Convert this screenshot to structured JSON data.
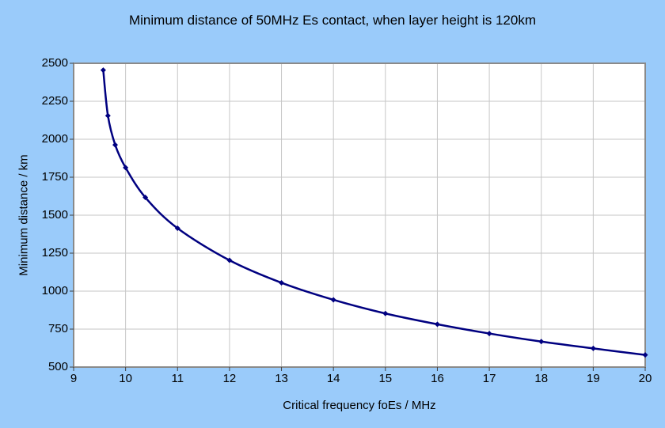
{
  "page": {
    "background_color": "#9ACBFA"
  },
  "chart_data": {
    "type": "line",
    "title": "Minimum distance of 50MHz Es contact, when layer height is 120km",
    "xlabel": "Critical frequency foEs / MHz",
    "ylabel": "Minimum distance / km",
    "series": [
      {
        "name": "minimum-distance-curve",
        "x": [
          9.57,
          9.66,
          9.8,
          10,
          10.38,
          11,
          12,
          13,
          14,
          15,
          16,
          17,
          18,
          19,
          20
        ],
        "y": [
          2455,
          2155,
          1963,
          1813,
          1617,
          1414,
          1203,
          1055,
          943,
          853,
          782,
          721,
          668,
          623,
          580
        ]
      }
    ],
    "xlim": [
      9,
      20
    ],
    "ylim": [
      500,
      2500
    ],
    "xticks": [
      9,
      10,
      11,
      12,
      13,
      14,
      15,
      16,
      17,
      18,
      19,
      20
    ],
    "yticks": [
      500,
      750,
      1000,
      1250,
      1500,
      1750,
      2000,
      2250,
      2500
    ],
    "grid": true,
    "legend": false,
    "smooth": true,
    "marker": "diamond",
    "line_color": "#000080",
    "marker_color": "#000080",
    "plot_bg": "#FFFFFF",
    "grid_color": "#C6C6C6",
    "border_color": "#8A8A8A",
    "tick_color": "#404040",
    "text_color": "#000000"
  }
}
